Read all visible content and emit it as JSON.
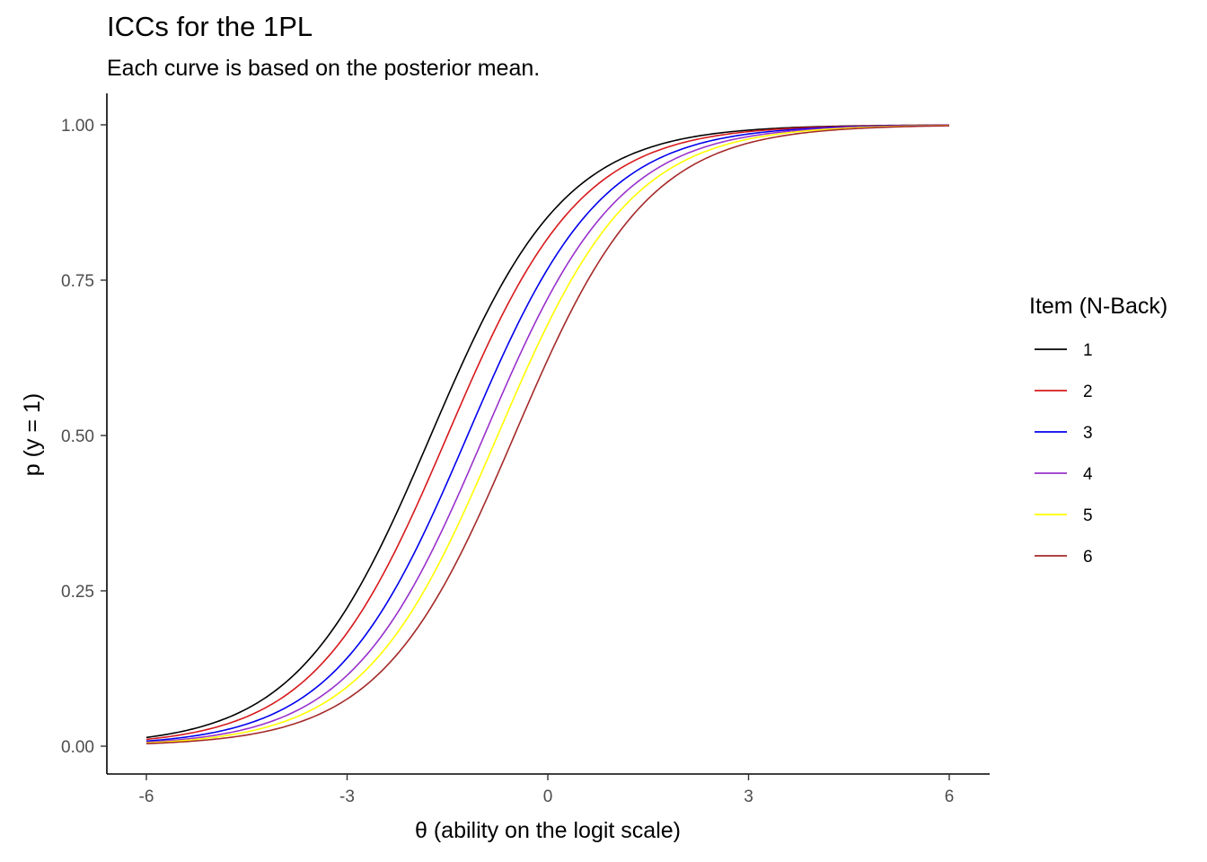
{
  "chart_data": {
    "type": "line",
    "title": "ICCs for the 1PL",
    "subtitle": "Each curve is based on the posterior mean.",
    "xlabel": "θ (ability on the logit scale)",
    "ylabel": "p (y = 1)",
    "xlim": [
      -6,
      6
    ],
    "ylim": [
      0,
      1
    ],
    "x_ticks": [
      -6,
      -3,
      0,
      3,
      6
    ],
    "x_tick_labels": [
      "-6",
      "-3",
      "0",
      "3",
      "6"
    ],
    "y_ticks": [
      0,
      0.25,
      0.5,
      0.75,
      1
    ],
    "y_tick_labels": [
      "0.00",
      "0.25",
      "0.50",
      "0.75",
      "1.00"
    ],
    "grid": false,
    "legend": {
      "title": "Item (N-Back)",
      "placement": "right"
    },
    "series": [
      {
        "name": "1",
        "color": "#000000",
        "difficulty": -1.75
      },
      {
        "name": "2",
        "color": "#d7191c",
        "difficulty": -1.5
      },
      {
        "name": "3",
        "color": "#0000ee",
        "difficulty": -1.2
      },
      {
        "name": "4",
        "color": "#9932cc",
        "difficulty": -0.95
      },
      {
        "name": "5",
        "color": "#ffff00",
        "difficulty": -0.75
      },
      {
        "name": "6",
        "color": "#a52a2a",
        "difficulty": -0.5
      }
    ]
  }
}
